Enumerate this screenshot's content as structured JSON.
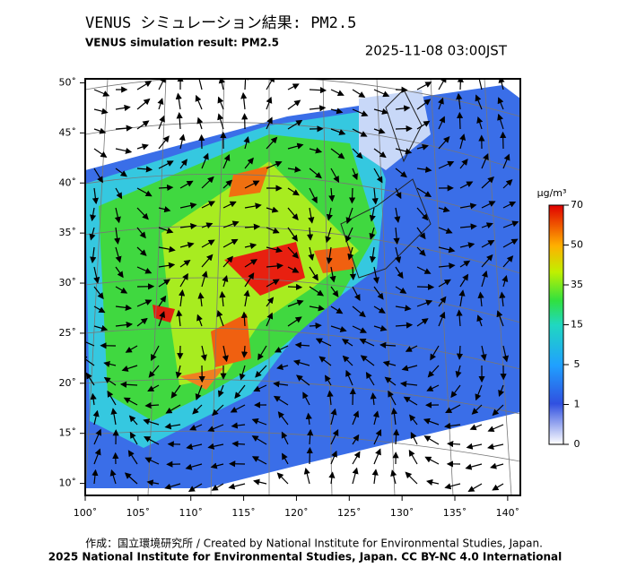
{
  "header": {
    "title": "VENUS シミュレーション結果: PM2.5",
    "subtitle": "VENUS simulation result: PM2.5",
    "timestamp": "2025-11-08 03:00JST"
  },
  "map": {
    "lonlim": [
      100,
      141.2
    ],
    "latlim": [
      8.8,
      50.4
    ],
    "lon_ticks": [
      {
        "value": 100,
        "label": "100˚"
      },
      {
        "value": 105,
        "label": "105˚"
      },
      {
        "value": 110,
        "label": "110˚"
      },
      {
        "value": 115,
        "label": "115˚"
      },
      {
        "value": 120,
        "label": "120˚"
      },
      {
        "value": 125,
        "label": "125˚"
      },
      {
        "value": 130,
        "label": "130˚"
      },
      {
        "value": 135,
        "label": "135˚"
      },
      {
        "value": 140,
        "label": "140˚"
      }
    ],
    "lat_ticks": [
      {
        "value": 50,
        "label": "50˚"
      },
      {
        "value": 45,
        "label": "45˚"
      },
      {
        "value": 40,
        "label": "40˚"
      },
      {
        "value": 35,
        "label": "35˚"
      },
      {
        "value": 30,
        "label": "30˚"
      },
      {
        "value": 25,
        "label": "25˚"
      },
      {
        "value": 20,
        "label": "20˚"
      },
      {
        "value": 15,
        "label": "15˚"
      },
      {
        "value": 10,
        "label": "10˚"
      }
    ]
  },
  "colorbar": {
    "unit": "μg/m³",
    "levels": [
      70,
      50,
      35,
      15,
      5,
      1,
      0
    ]
  },
  "footer": {
    "credit": "作成：国立環境研究所 / Created by National Institute for Environmental Studies, Japan.",
    "license": "2025 National Institute for Environmental Studies, Japan. CC BY-NC 4.0 International"
  }
}
